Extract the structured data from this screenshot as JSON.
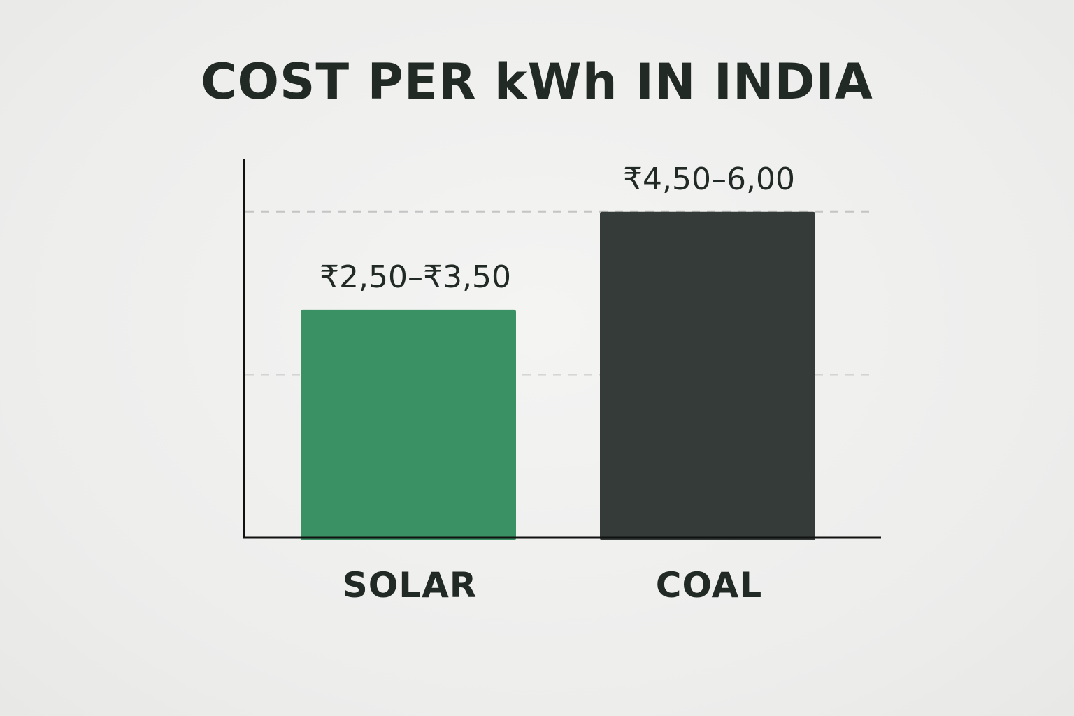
{
  "chart_data": {
    "type": "bar",
    "title": "COST PER kWh IN INDIA",
    "xlabel": "",
    "ylabel": "",
    "categories": [
      "SOLAR",
      "COAL"
    ],
    "ranges": [
      [
        2.5,
        3.5
      ],
      [
        4.5,
        6.0
      ]
    ],
    "values": [
      3.5,
      5.0
    ],
    "data_labels": [
      "₹2,50–₹3,50",
      "₹4,50–6,00"
    ],
    "ylim": [
      0,
      5.8
    ],
    "grid": "horizontal-dashed",
    "legend": "none",
    "colors": [
      "#3a9163",
      "#343b38"
    ]
  },
  "colors": {
    "axis": "#111111",
    "grid": "#c4c4c4",
    "text": "#222a26",
    "background": "#efefee"
  }
}
